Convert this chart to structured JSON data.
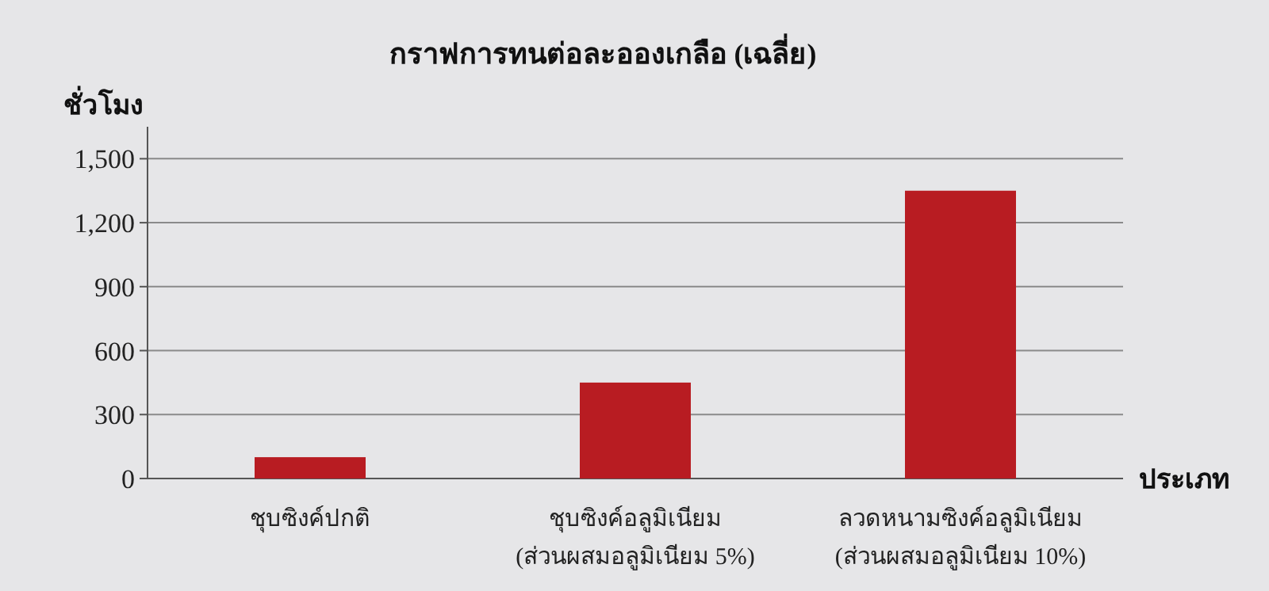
{
  "chart_data": {
    "type": "bar",
    "title": "กราฟการทนต่อละอองเกลือ (เฉลี่ย)",
    "ylabel": "ชั่วโมง",
    "xlabel": "ประเภท",
    "categories": [
      "ชุบซิงค์ปกติ",
      "ชุบซิงค์อลูมิเนียม\n(ส่วนผสมอลูมิเนียม 5%)",
      "ลวดหนามซิงค์อลูมิเนียม\n(ส่วนผสมอลูมิเนียม 10%)"
    ],
    "values": [
      100,
      450,
      1350
    ],
    "color": "#b81c22",
    "ylim": [
      0,
      1650
    ],
    "yticks": [
      0,
      {
        "value": 300,
        "label": "300"
      },
      {
        "value": 600,
        "label": "600"
      },
      {
        "value": 900,
        "label": "900"
      },
      {
        "value": 1200,
        "label": "1,200"
      },
      {
        "value": 1500,
        "label": "1,500"
      }
    ],
    "grid": "y"
  }
}
